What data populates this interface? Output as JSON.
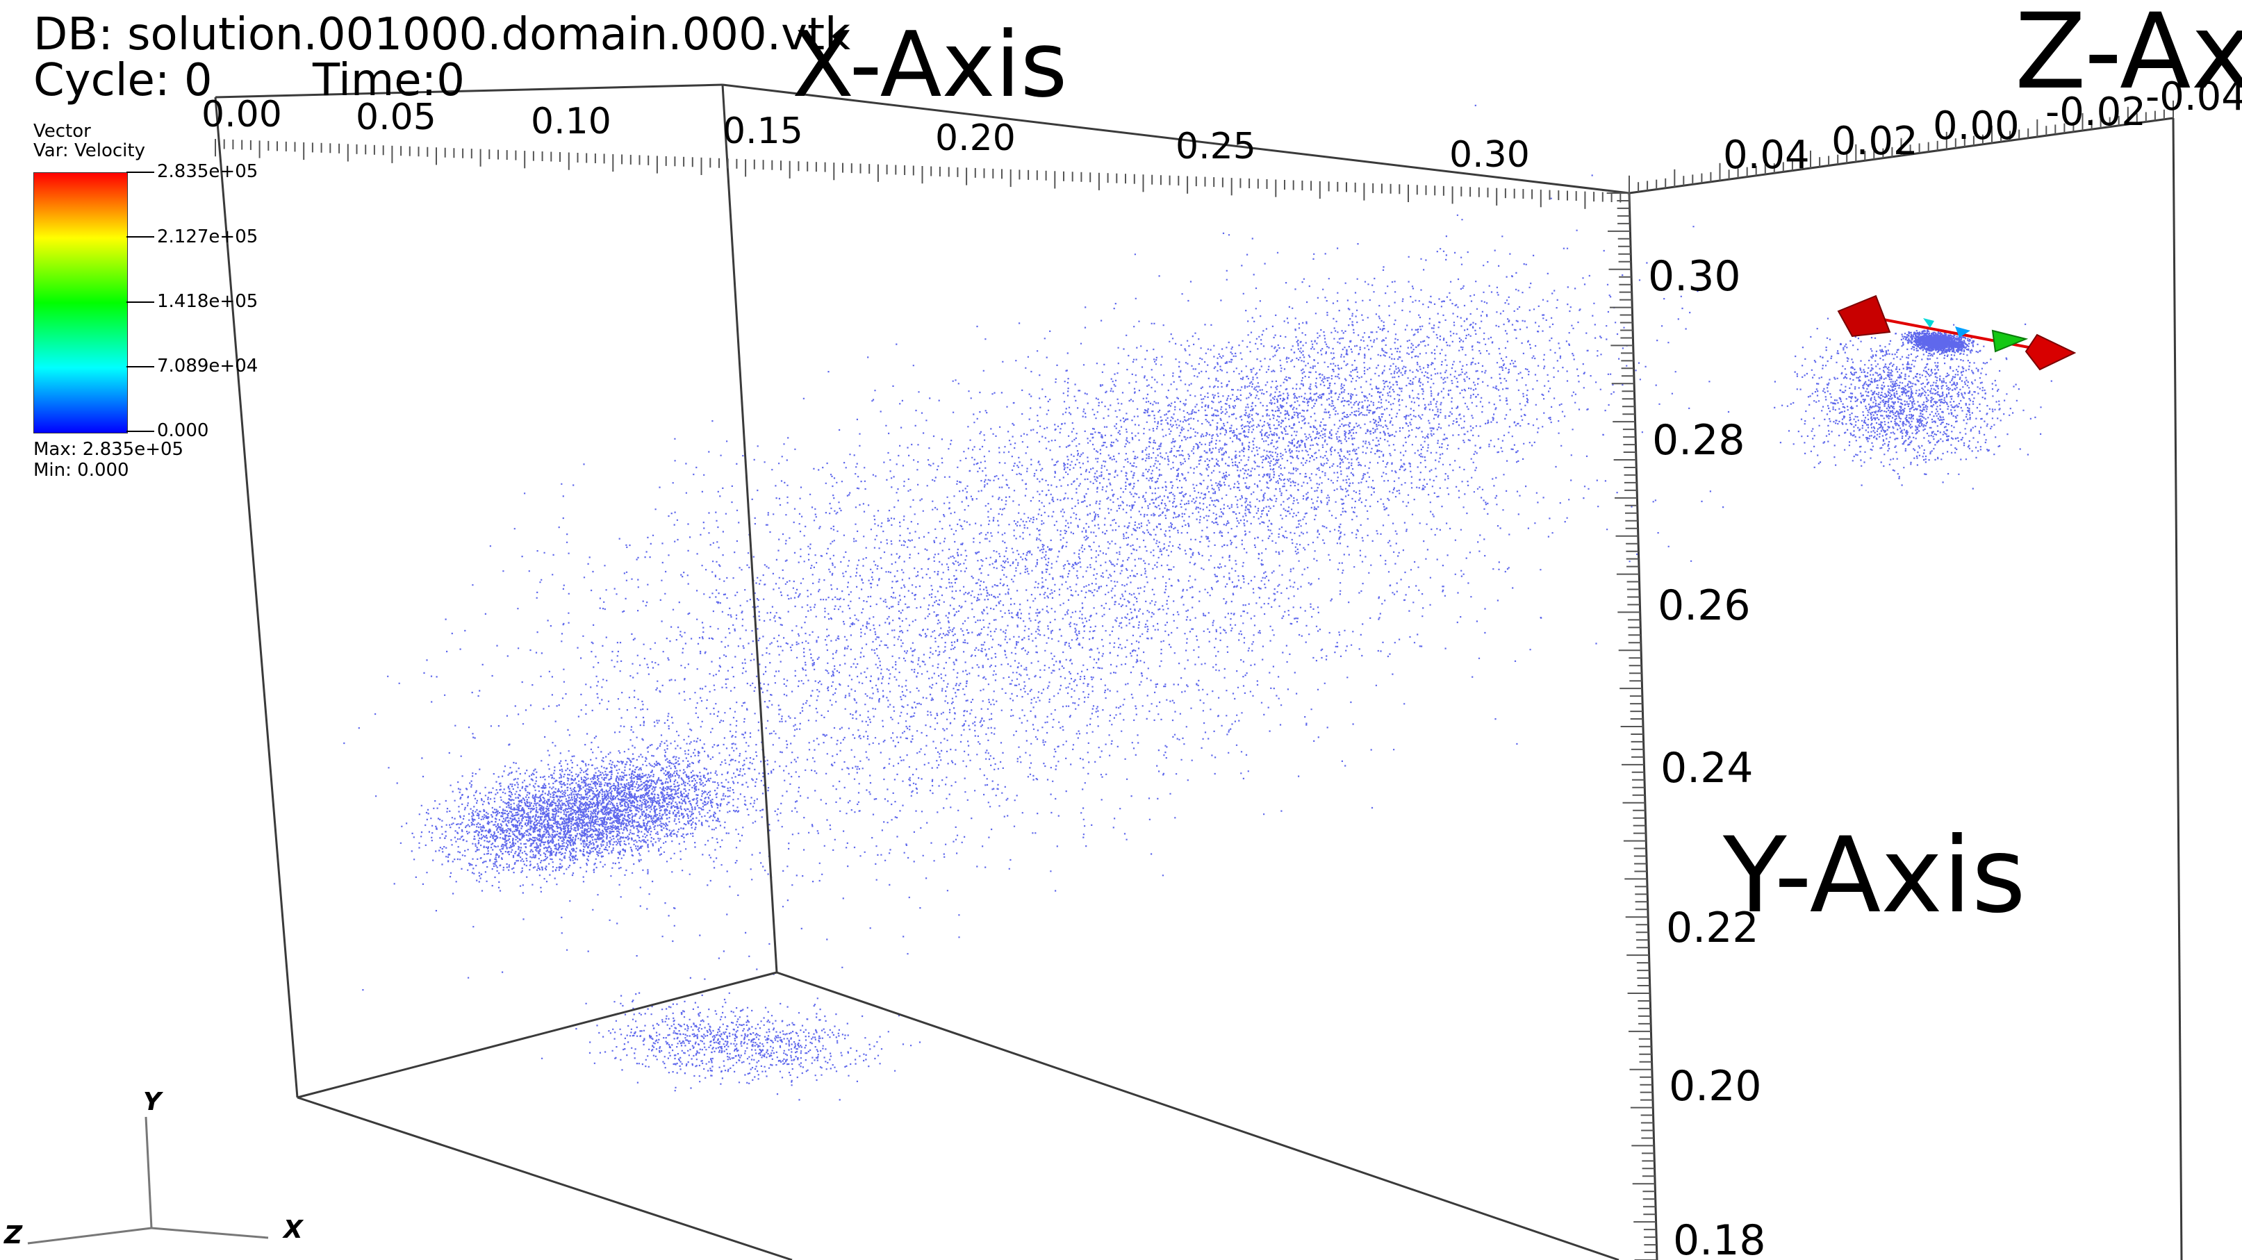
{
  "header": {
    "db": "DB: solution.001000.domain.000.vtk",
    "cycle": "Cycle: 0",
    "time": "Time:0"
  },
  "legend": {
    "kind": "Vector",
    "var": "Var: Velocity",
    "labels": [
      "2.835e+05",
      "2.127e+05",
      "1.418e+05",
      "7.089e+04",
      "0.000"
    ],
    "max": "Max:  2.835e+05",
    "min": "Min:  0.000",
    "colors": [
      "#ff0000",
      "#ffff00",
      "#00ff00",
      "#00ffff",
      "#0000ff"
    ]
  },
  "axes": {
    "x_title": "X-Axis",
    "y_title": "Y-Axis",
    "z_title": "Z-Ax",
    "x_ticks": [
      "0.00",
      "0.05",
      "0.10",
      "0.15",
      "0.20",
      "0.25",
      "0.30"
    ],
    "y_ticks": [
      "0.30",
      "0.28",
      "0.26",
      "0.24",
      "0.22",
      "0.20",
      "0.18"
    ],
    "z_ticks": [
      "0.04",
      "0.02",
      "0.00",
      "-0.02",
      "-0.04"
    ]
  },
  "triad": {
    "x": "X",
    "y": "Y",
    "z": "Z"
  },
  "colors": {
    "points": "#2a35e6",
    "box": "#3a3a3a",
    "glyph_red": "#e00000",
    "glyph_green": "#14c814"
  }
}
